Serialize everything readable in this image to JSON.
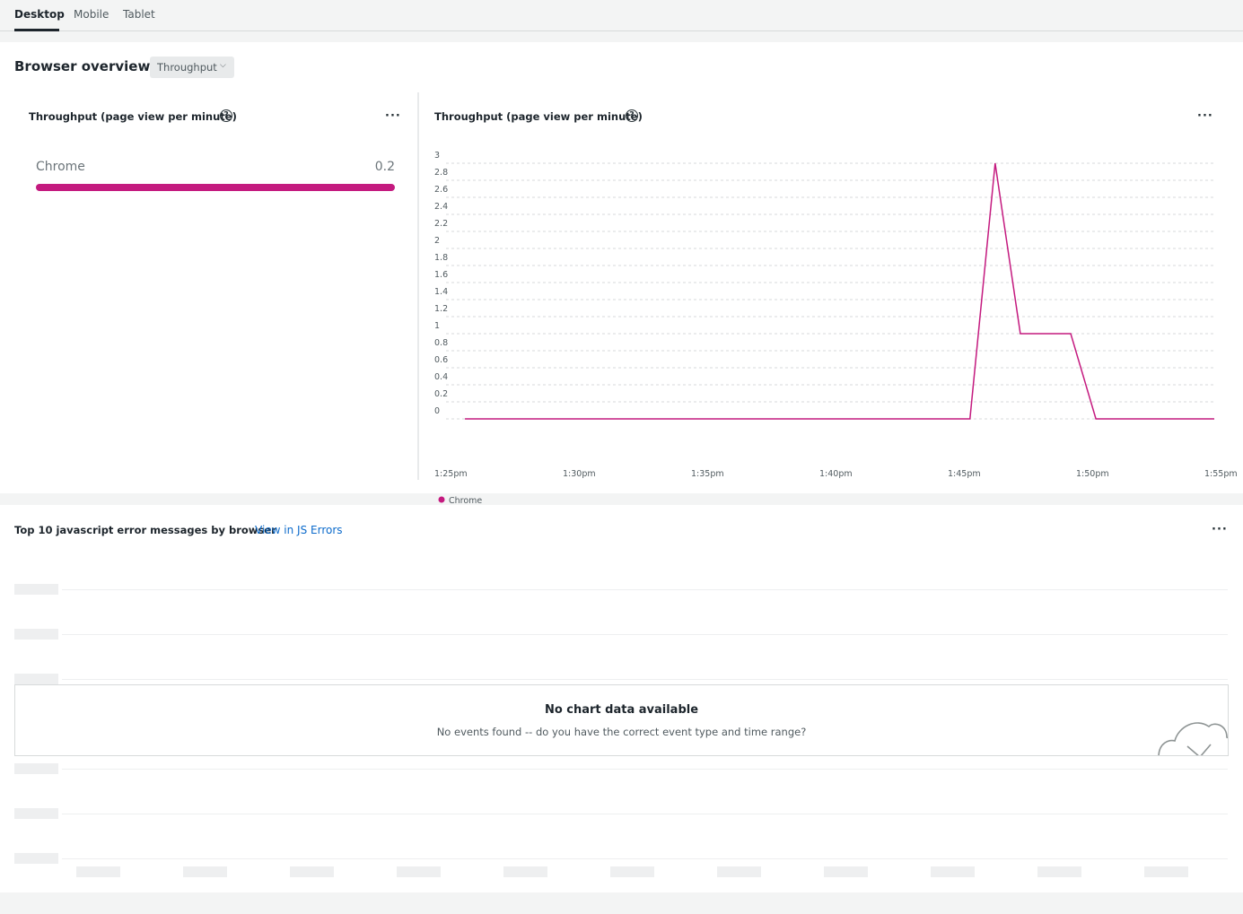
{
  "tabs": [
    {
      "label": "Desktop",
      "active": true
    },
    {
      "label": "Mobile",
      "active": false
    },
    {
      "label": "Tablet",
      "active": false
    }
  ],
  "overview": {
    "title": "Browser overview",
    "dropdown_value": "Throughput"
  },
  "bar_card": {
    "title": "Throughput (page view per minute)",
    "help_icon": "question-circle-icon",
    "more_icon": "ellipsis-icon",
    "items": [
      {
        "label": "Chrome",
        "value": "0.2",
        "fraction": 1.0
      }
    ],
    "accent_color": "#c41a7f"
  },
  "line_card": {
    "title": "Throughput (page view per minute)",
    "help_icon": "question-circle-icon",
    "more_icon": "ellipsis-icon"
  },
  "chart_data": {
    "type": "line",
    "title": "Throughput (page view per minute)",
    "xlabel": "",
    "ylabel": "",
    "x_ticks": [
      "1:25pm",
      "1:30pm",
      "1:35pm",
      "1:40pm",
      "1:45pm",
      "1:50pm",
      "1:55pm"
    ],
    "y_ticks": [
      "0",
      "0.2",
      "0.4",
      "0.6",
      "0.8",
      "1",
      "1.2",
      "1.4",
      "1.6",
      "1.8",
      "2",
      "2.2",
      "2.4",
      "2.6",
      "2.8",
      "3"
    ],
    "ylim": [
      0,
      3
    ],
    "xlim_minutes": [
      0,
      30.5
    ],
    "grid": true,
    "legend_position": "bottom-left",
    "series": [
      {
        "name": "Chrome",
        "color": "#c41a7f",
        "x_minutes_after_125pm": [
          0.75,
          20.8,
          21.8,
          22.8,
          24.8,
          25.8,
          30.5
        ],
        "values": [
          0,
          0,
          3,
          1,
          1,
          0,
          0
        ]
      }
    ]
  },
  "errors_card": {
    "title": "Top 10 javascript error messages by browser",
    "link_text": "View in JS Errors",
    "more_icon": "ellipsis-icon",
    "empty_title": "No chart data available",
    "empty_message": "No events found -- do you have the correct event type and time range?",
    "empty_icon": "cloud-check-icon"
  }
}
